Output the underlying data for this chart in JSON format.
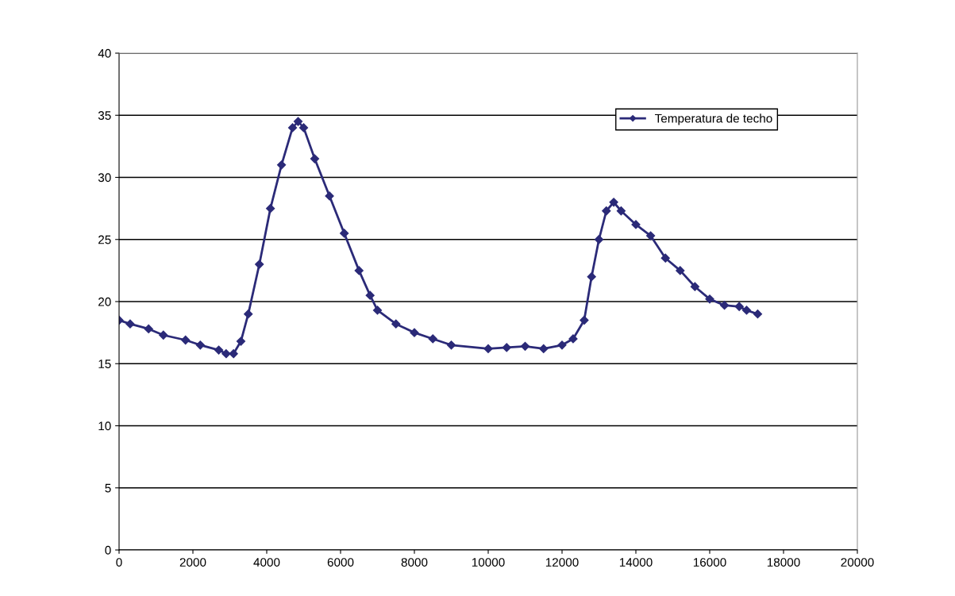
{
  "chart_data": {
    "type": "line",
    "xlim": [
      0,
      20000
    ],
    "xticks": [
      0,
      2000,
      4000,
      6000,
      8000,
      10000,
      12000,
      14000,
      16000,
      18000,
      20000
    ],
    "ylim": [
      0,
      40
    ],
    "yticks": [
      0,
      5,
      10,
      15,
      20,
      25,
      30,
      35,
      40
    ],
    "grid": "y",
    "legend": "top right",
    "marker": "diamond",
    "line_style": "solid",
    "series": [
      {
        "name": "Temperatura de techo",
        "color": "#2b2a78",
        "x": [
          0,
          300,
          800,
          1200,
          1800,
          2200,
          2700,
          2900,
          3100,
          3300,
          3500,
          3800,
          4100,
          4400,
          4700,
          4850,
          5000,
          5300,
          5700,
          6100,
          6500,
          6800,
          7000,
          7500,
          8000,
          8500,
          9000,
          10000,
          10500,
          11000,
          11500,
          12000,
          12300,
          12600,
          12800,
          13000,
          13200,
          13400,
          13600,
          14000,
          14400,
          14800,
          15200,
          15600,
          16000,
          16400,
          16800,
          17000,
          17300
        ],
        "values": [
          18.5,
          18.2,
          17.8,
          17.3,
          16.9,
          16.5,
          16.1,
          15.8,
          15.8,
          16.8,
          19,
          23,
          27.5,
          31,
          34,
          34.5,
          34,
          31.5,
          28.5,
          25.5,
          22.5,
          20.5,
          19.3,
          18.2,
          17.5,
          17,
          16.5,
          16.2,
          16.3,
          16.4,
          16.2,
          16.5,
          17,
          18.5,
          22,
          25,
          27.3,
          28,
          27.3,
          26.2,
          25.3,
          23.5,
          22.5,
          21.2,
          20.2,
          19.7,
          19.6,
          19.3,
          19.0
        ]
      }
    ]
  }
}
